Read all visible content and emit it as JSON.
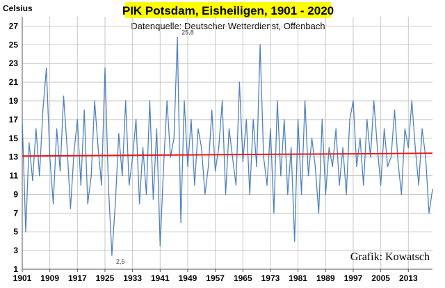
{
  "chart_data": {
    "type": "line",
    "title": "PIK Potsdam, Eisheiligen, 1901 - 2020",
    "subtitle": "Datenquelle: Deutscher Wetterdienst, Offenbach",
    "ylabel": "Celsius",
    "credit": "Grafik: Kowatsch",
    "ylim": [
      1,
      28
    ],
    "xlim": [
      1901,
      2020
    ],
    "yticks": [
      1,
      3,
      5,
      7,
      9,
      11,
      13,
      15,
      17,
      19,
      21,
      23,
      25,
      27
    ],
    "xticks": [
      1901,
      1909,
      1917,
      1925,
      1933,
      1941,
      1949,
      1957,
      1965,
      1973,
      1981,
      1989,
      1997,
      2005,
      2013
    ],
    "grid": true,
    "annotations": [
      {
        "x": 1946,
        "y": 25.8,
        "text": "25,8"
      },
      {
        "x": 1927,
        "y": 2.5,
        "text": "2,5"
      }
    ],
    "series": [
      {
        "color": "#4f81bd",
        "x": [
          1901,
          1902,
          1903,
          1904,
          1905,
          1906,
          1907,
          1908,
          1909,
          1910,
          1911,
          1912,
          1913,
          1914,
          1915,
          1916,
          1917,
          1918,
          1919,
          1920,
          1921,
          1922,
          1923,
          1924,
          1925,
          1926,
          1927,
          1928,
          1929,
          1930,
          1931,
          1932,
          1933,
          1934,
          1935,
          1936,
          1937,
          1938,
          1939,
          1940,
          1941,
          1942,
          1943,
          1944,
          1945,
          1946,
          1947,
          1948,
          1949,
          1950,
          1951,
          1952,
          1953,
          1954,
          1955,
          1956,
          1957,
          1958,
          1959,
          1960,
          1961,
          1962,
          1963,
          1964,
          1965,
          1966,
          1967,
          1968,
          1969,
          1970,
          1971,
          1972,
          1973,
          1974,
          1975,
          1976,
          1977,
          1978,
          1979,
          1980,
          1981,
          1982,
          1983,
          1984,
          1985,
          1986,
          1987,
          1988,
          1989,
          1990,
          1991,
          1992,
          1993,
          1994,
          1995,
          1996,
          1997,
          1998,
          1999,
          2000,
          2001,
          2002,
          2003,
          2004,
          2005,
          2006,
          2007,
          2008,
          2009,
          2010,
          2011,
          2012,
          2013,
          2014,
          2015,
          2016,
          2017,
          2018,
          2019,
          2020
        ],
        "values": [
          17,
          5,
          14.5,
          10.5,
          16,
          11,
          18,
          22.5,
          13,
          8,
          16,
          11.5,
          19.5,
          14,
          7.5,
          13.5,
          17,
          10,
          18,
          8,
          11,
          19,
          14,
          10,
          22.5,
          10,
          2.5,
          8,
          15.5,
          11,
          19,
          10,
          13,
          17,
          8,
          14,
          9,
          19,
          8.5,
          16,
          3.5,
          12,
          19,
          13,
          15,
          25.8,
          6,
          19,
          12,
          17,
          10,
          16,
          14,
          9,
          12,
          18,
          11.5,
          14,
          19,
          9,
          16,
          13,
          10,
          21,
          12.5,
          17,
          9,
          17,
          12,
          25,
          13,
          10,
          16,
          7,
          19,
          11,
          17,
          9,
          14,
          4,
          17,
          9,
          19,
          11,
          15,
          12,
          7,
          17,
          9,
          14,
          12,
          16,
          10,
          14,
          9,
          17,
          19,
          12,
          15,
          10,
          17,
          13,
          19,
          14,
          10,
          16,
          12,
          13,
          18,
          12.5,
          9,
          16,
          14,
          19,
          14,
          10,
          16,
          13,
          7,
          9.5
        ]
      },
      {
        "color": "#e31a1c",
        "x": [
          1901,
          2020
        ],
        "values": [
          13.1,
          13.4
        ]
      }
    ]
  }
}
